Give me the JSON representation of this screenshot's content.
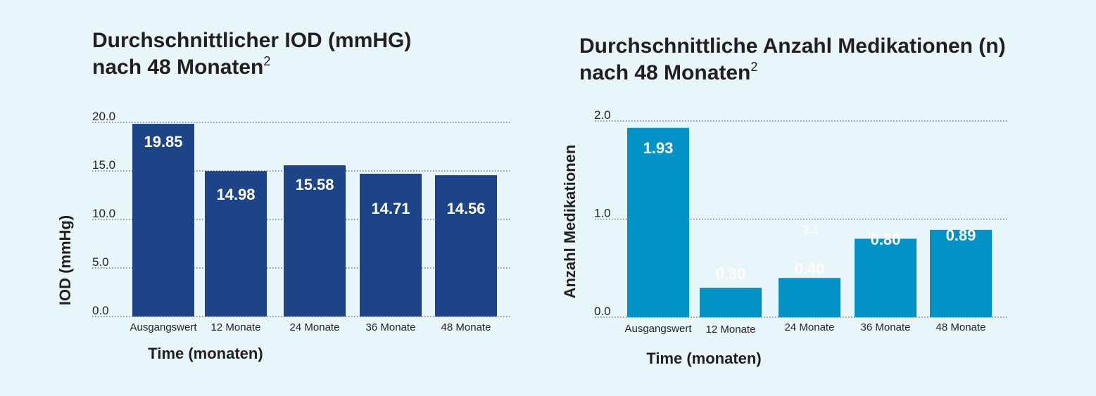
{
  "colors": {
    "background": "#e8f5f9",
    "text": "#231f20",
    "grid": "#333333"
  },
  "chart_data": [
    {
      "type": "bar",
      "title_line1": "Durchschnittlicher IOD (mmHG)",
      "title_line2": "nach 48 Monaten",
      "title_sup": "2",
      "xlabel": "Time (monaten)",
      "ylabel": "IOD (mmHg)",
      "categories": [
        "Ausgangswert",
        "12 Monate",
        "24 Monate",
        "36 Monate",
        "48 Monate"
      ],
      "values": [
        19.85,
        14.98,
        15.58,
        14.71,
        14.56
      ],
      "value_labels": [
        "19.85",
        "14.98",
        "15.58",
        "14.71",
        "14.56"
      ],
      "yticks": [
        "0.0",
        "5.0",
        "10.0",
        "15.0",
        "20.0"
      ],
      "ylim": [
        0,
        20
      ],
      "grid": true,
      "bar_color": "#1c4487"
    },
    {
      "type": "bar",
      "title_line1": "Durchschnittliche Anzahl Medikationen (n)",
      "title_line2": "nach 48 Monaten",
      "title_sup": "2",
      "xlabel": "Time (monaten)",
      "ylabel": "Anzahl Medikationen",
      "categories": [
        "Ausgangswert",
        "12 Monate",
        "24 Monate",
        "36 Monate",
        "48 Monate"
      ],
      "values": [
        1.93,
        0.3,
        0.4,
        0.8,
        0.89
      ],
      "value_labels": [
        "1.93",
        "0.30",
        "0.40",
        "0.80",
        "0.89"
      ],
      "annotation": "2.1",
      "yticks": [
        "0.0",
        "1.0",
        "2.0"
      ],
      "ylim": [
        0,
        2
      ],
      "grid": true,
      "bar_color": "#0392c6"
    }
  ]
}
